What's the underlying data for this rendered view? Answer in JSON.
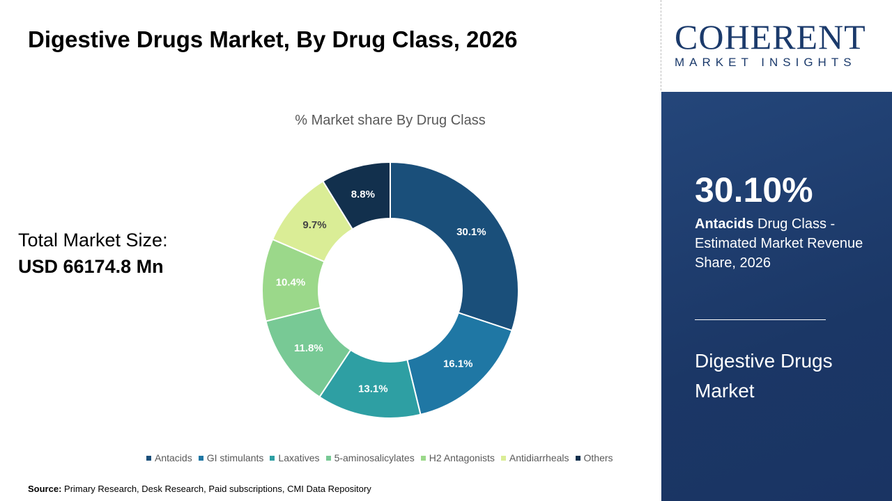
{
  "title": "Digestive Drugs Market, By Drug Class, 2026",
  "total_label": "Total Market Size:",
  "total_value": "USD 66174.8 Mn",
  "source_label": "Source:",
  "source_text": " Primary Research, Desk Research, Paid subscriptions, CMI Data Repository",
  "logo": {
    "line1": "COHERENT",
    "line2": "MARKET INSIGHTS"
  },
  "panel": {
    "pct": "30.10%",
    "bold": "Antacids",
    "desc": " Drug Class - Estimated Market Revenue Share, 2026",
    "name": "Digestive Drugs Market"
  },
  "chart_data": {
    "type": "donut",
    "title": "% Market share By Drug Class",
    "categories": [
      "Antacids",
      "GI stimulants",
      "Laxatives",
      "5-aminosalicylates",
      "H2 Antagonists",
      "Antidiarrheals",
      "Others"
    ],
    "values": [
      30.1,
      16.1,
      13.1,
      11.8,
      10.4,
      9.7,
      8.8
    ],
    "labels": [
      "30.1%",
      "16.1%",
      "13.1%",
      "11.8%",
      "10.4%",
      "9.7%",
      "8.8%"
    ],
    "colors": [
      "#1a4f7a",
      "#1f77a4",
      "#2e9fa3",
      "#78c995",
      "#9bd88a",
      "#daed96",
      "#12304d"
    ],
    "label_colors": [
      "#fff",
      "#fff",
      "#fff",
      "#fff",
      "#fff",
      "#444",
      "#fff"
    ],
    "legend": "bottom"
  }
}
